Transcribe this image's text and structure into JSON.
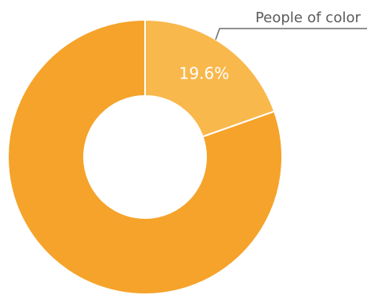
{
  "chart_data": {
    "type": "pie",
    "slices": [
      {
        "value": 19.6,
        "color": "#F9B84C",
        "label": "19.6%",
        "callout": "People of color"
      },
      {
        "value": 80.4,
        "color": "#F5A32A",
        "label": "",
        "callout": ""
      }
    ],
    "callout_line_color": "#6b6b6b",
    "separator_color": "#ffffff"
  }
}
